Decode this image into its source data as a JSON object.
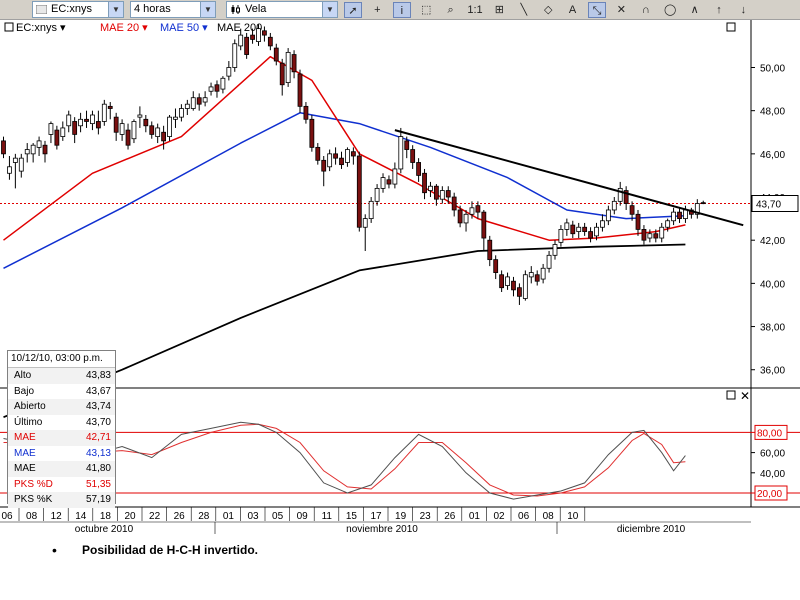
{
  "toolbar": {
    "symbol": "EC:xnys",
    "interval": "4 horas",
    "chart_style": "Vela",
    "buttons": [
      {
        "name": "pointer-tool-button",
        "glyph": "➚",
        "active": true
      },
      {
        "name": "crosshair-tool-button",
        "glyph": "+",
        "active": false
      },
      {
        "name": "info-tool-button",
        "glyph": "i",
        "active": true
      },
      {
        "name": "zoom-area-tool-button",
        "glyph": "⬚",
        "active": false
      },
      {
        "name": "zoom-tool-button",
        "glyph": "⌕",
        "active": false
      },
      {
        "name": "scale-1-1-button",
        "glyph": "1:1",
        "active": false
      },
      {
        "name": "fibonacci-tool-button",
        "glyph": "⊞",
        "active": false
      },
      {
        "name": "line-tool-button",
        "glyph": "╲",
        "active": false
      },
      {
        "name": "eraser-tool-button",
        "glyph": "◇",
        "active": false
      },
      {
        "name": "text-tool-button",
        "glyph": "A",
        "active": false
      },
      {
        "name": "channel-tool-button",
        "glyph": "⤡",
        "active": true
      },
      {
        "name": "delete-tool-button",
        "glyph": "✕",
        "active": false
      },
      {
        "name": "cycle-tool-button",
        "glyph": "∩",
        "active": false
      },
      {
        "name": "ellipse-tool-button",
        "glyph": "◯",
        "active": false
      },
      {
        "name": "wave-tool-button",
        "glyph": "∧",
        "active": false
      },
      {
        "name": "arrow-up-tool-button",
        "glyph": "↑",
        "active": false
      },
      {
        "name": "arrow-down-tool-button",
        "glyph": "↓",
        "active": false
      }
    ]
  },
  "legend": {
    "symbol": "EC:xnys",
    "mae20": "MAE 20",
    "mae50": "MAE 50",
    "mae200": "MAE 200",
    "arrow": "▾"
  },
  "colors": {
    "price": "#000000",
    "mae20": "#e00000",
    "mae50": "#1030d0",
    "mae200": "#000000",
    "candle_down": "#7a1010",
    "candle_up": "#ffffff",
    "ref_line": "#e00000",
    "osc_k": "#505050",
    "osc_d": "#e03030"
  },
  "panel_controls": {
    "restore": "☐",
    "close": "✕"
  },
  "infobox": {
    "title": "10/12/10, 03:00 p.m.",
    "rows": [
      {
        "label": "Alto",
        "value": "43,83",
        "color": "#000000"
      },
      {
        "label": "Bajo",
        "value": "43,67",
        "color": "#000000"
      },
      {
        "label": "Abierto",
        "value": "43,74",
        "color": "#000000"
      },
      {
        "label": "Último",
        "value": "43,70",
        "color": "#000000"
      },
      {
        "label": "MAE",
        "value": "42,71",
        "color": "#e00000"
      },
      {
        "label": "MAE",
        "value": "43,13",
        "color": "#1030d0"
      },
      {
        "label": "MAE",
        "value": "41,80",
        "color": "#000000"
      },
      {
        "label": "PKS %D",
        "value": "51,35",
        "color": "#e00000"
      },
      {
        "label": "PKS %K",
        "value": "57,19",
        "color": "#000000"
      }
    ]
  },
  "bullet": {
    "dot": "•",
    "text": "Posibilidad de H-C-H invertido."
  },
  "chart_data": {
    "type": "candlestick",
    "y_ticks": [
      {
        "value": 36,
        "label": "36,00"
      },
      {
        "value": 38,
        "label": "38,00"
      },
      {
        "value": 40,
        "label": "40,00"
      },
      {
        "value": 42,
        "label": "42,00"
      },
      {
        "value": 44,
        "label": "44,00"
      },
      {
        "value": 46,
        "label": "46,00"
      },
      {
        "value": 48,
        "label": "48,00"
      },
      {
        "value": 50,
        "label": "50,00"
      }
    ],
    "ylim": [
      35.2,
      52.2
    ],
    "last_price": {
      "value": 43.7,
      "label": "43,70"
    },
    "day_labels": [
      "06",
      "08",
      "12",
      "14",
      "18",
      "20",
      "22",
      "26",
      "28",
      "01",
      "03",
      "05",
      "09",
      "11",
      "15",
      "17",
      "19",
      "23",
      "26",
      "01",
      "02",
      "06",
      "08",
      "10"
    ],
    "month_labels": [
      "octubre 2010",
      "noviembre 2010",
      "diciembre 2010"
    ],
    "grid": false,
    "candles": [
      [
        46.6,
        46.0,
        45.8,
        46.8
      ],
      [
        45.1,
        45.4,
        44.8,
        45.9
      ],
      [
        45.6,
        45.8,
        44.4,
        46.0
      ],
      [
        45.2,
        45.8,
        44.9,
        46.0
      ],
      [
        46.0,
        46.2,
        45.6,
        46.5
      ],
      [
        46.0,
        46.4,
        45.6,
        46.5
      ],
      [
        46.3,
        46.6,
        45.9,
        46.8
      ],
      [
        46.4,
        46.0,
        45.6,
        46.6
      ],
      [
        46.9,
        47.4,
        46.5,
        47.5
      ],
      [
        47.1,
        46.4,
        46.2,
        47.3
      ],
      [
        46.8,
        47.2,
        46.6,
        47.5
      ],
      [
        47.3,
        47.8,
        47.0,
        48.0
      ],
      [
        47.5,
        46.9,
        46.5,
        47.7
      ],
      [
        47.3,
        47.6,
        47.0,
        47.9
      ],
      [
        47.6,
        47.5,
        47.2,
        48.0
      ],
      [
        47.4,
        47.8,
        47.1,
        48.0
      ],
      [
        47.5,
        47.2,
        46.9,
        48.0
      ],
      [
        47.5,
        48.3,
        47.3,
        48.5
      ],
      [
        48.2,
        48.1,
        47.6,
        48.4
      ],
      [
        47.7,
        47.0,
        46.6,
        47.9
      ],
      [
        46.9,
        47.4,
        46.6,
        47.6
      ],
      [
        47.1,
        46.4,
        46.2,
        47.4
      ],
      [
        46.7,
        47.5,
        46.5,
        47.6
      ],
      [
        47.7,
        47.8,
        47.2,
        48.2
      ],
      [
        47.6,
        47.3,
        47.0,
        47.8
      ],
      [
        47.3,
        46.9,
        46.7,
        47.5
      ],
      [
        46.8,
        47.2,
        46.5,
        47.4
      ],
      [
        47.0,
        46.6,
        46.2,
        47.3
      ],
      [
        46.8,
        47.7,
        46.6,
        47.8
      ],
      [
        47.6,
        47.7,
        47.2,
        48.1
      ],
      [
        47.7,
        48.1,
        47.5,
        48.3
      ],
      [
        48.1,
        48.3,
        47.8,
        48.5
      ],
      [
        48.1,
        48.6,
        48.0,
        48.9
      ],
      [
        48.6,
        48.3,
        48.0,
        48.8
      ],
      [
        48.4,
        48.6,
        48.2,
        48.9
      ],
      [
        48.9,
        49.1,
        48.7,
        49.3
      ],
      [
        49.2,
        48.9,
        48.6,
        49.4
      ],
      [
        49.0,
        49.5,
        48.8,
        49.6
      ],
      [
        49.6,
        50.0,
        49.4,
        50.3
      ],
      [
        50.0,
        51.1,
        49.8,
        51.3
      ],
      [
        51.0,
        51.5,
        50.8,
        51.8
      ],
      [
        51.4,
        50.6,
        50.4,
        51.6
      ],
      [
        51.5,
        51.3,
        51.1,
        51.8
      ],
      [
        51.2,
        51.8,
        51.0,
        52.0
      ],
      [
        51.7,
        51.5,
        51.2,
        51.9
      ],
      [
        51.4,
        51.0,
        50.8,
        51.6
      ],
      [
        50.9,
        50.3,
        50.1,
        51.1
      ],
      [
        50.2,
        49.2,
        48.7,
        50.4
      ],
      [
        49.3,
        50.7,
        49.1,
        50.9
      ],
      [
        50.6,
        49.8,
        49.5,
        50.8
      ],
      [
        49.7,
        48.2,
        47.9,
        49.9
      ],
      [
        48.2,
        47.6,
        47.4,
        48.4
      ],
      [
        47.6,
        46.3,
        46.1,
        47.8
      ],
      [
        46.3,
        45.7,
        45.5,
        46.5
      ],
      [
        45.7,
        45.2,
        44.5,
        45.9
      ],
      [
        45.4,
        46.0,
        45.2,
        46.2
      ],
      [
        46.0,
        45.8,
        45.5,
        46.3
      ],
      [
        45.8,
        45.5,
        45.3,
        46.1
      ],
      [
        45.6,
        46.2,
        45.4,
        46.3
      ],
      [
        46.1,
        45.9,
        45.5,
        46.3
      ],
      [
        45.9,
        42.6,
        42.4,
        46.1
      ],
      [
        42.6,
        43.0,
        41.5,
        43.2
      ],
      [
        43.0,
        43.8,
        42.8,
        44.0
      ],
      [
        43.8,
        44.4,
        43.6,
        44.6
      ],
      [
        44.4,
        44.9,
        44.2,
        45.1
      ],
      [
        44.8,
        44.6,
        44.4,
        45.0
      ],
      [
        44.6,
        45.3,
        44.4,
        45.6
      ],
      [
        45.3,
        46.8,
        45.1,
        47.2
      ],
      [
        46.6,
        46.2,
        45.8,
        46.8
      ],
      [
        46.2,
        45.6,
        45.3,
        46.4
      ],
      [
        45.6,
        45.0,
        44.7,
        45.8
      ],
      [
        45.1,
        44.2,
        43.9,
        45.3
      ],
      [
        44.3,
        44.5,
        44.0,
        44.7
      ],
      [
        44.5,
        43.9,
        43.6,
        44.6
      ],
      [
        43.9,
        44.3,
        43.7,
        44.5
      ],
      [
        44.3,
        44.0,
        43.7,
        44.5
      ],
      [
        44.0,
        43.4,
        43.1,
        44.2
      ],
      [
        43.4,
        42.8,
        42.6,
        43.6
      ],
      [
        42.8,
        43.2,
        42.4,
        43.4
      ],
      [
        43.2,
        43.5,
        43.0,
        43.8
      ],
      [
        43.6,
        43.3,
        43.0,
        43.8
      ],
      [
        43.3,
        42.1,
        41.5,
        43.4
      ],
      [
        42.0,
        41.1,
        40.8,
        42.2
      ],
      [
        41.1,
        40.5,
        40.2,
        41.3
      ],
      [
        40.4,
        39.8,
        39.6,
        40.6
      ],
      [
        39.9,
        40.3,
        39.7,
        40.5
      ],
      [
        40.1,
        39.7,
        39.4,
        40.3
      ],
      [
        39.8,
        39.4,
        39.0,
        40.0
      ],
      [
        39.3,
        40.4,
        39.2,
        40.6
      ],
      [
        40.3,
        40.5,
        40.0,
        40.8
      ],
      [
        40.4,
        40.1,
        39.9,
        40.6
      ],
      [
        40.2,
        40.7,
        40.0,
        40.9
      ],
      [
        40.7,
        41.3,
        40.5,
        41.5
      ],
      [
        41.3,
        41.8,
        41.1,
        42.0
      ],
      [
        41.9,
        42.5,
        41.7,
        42.7
      ],
      [
        42.5,
        42.8,
        42.2,
        43.0
      ],
      [
        42.7,
        42.3,
        42.1,
        42.9
      ],
      [
        42.4,
        42.6,
        42.1,
        42.8
      ],
      [
        42.6,
        42.4,
        42.2,
        42.8
      ],
      [
        42.4,
        42.1,
        41.9,
        42.6
      ],
      [
        42.2,
        42.6,
        42.0,
        42.8
      ],
      [
        42.6,
        42.9,
        42.4,
        43.2
      ],
      [
        42.9,
        43.4,
        42.7,
        43.6
      ],
      [
        43.4,
        43.8,
        43.2,
        44.0
      ],
      [
        43.8,
        44.4,
        43.6,
        44.7
      ],
      [
        44.3,
        43.7,
        43.4,
        44.5
      ],
      [
        43.6,
        43.2,
        42.9,
        43.8
      ],
      [
        43.2,
        42.5,
        42.2,
        43.4
      ],
      [
        42.5,
        42.0,
        41.8,
        42.7
      ],
      [
        42.1,
        42.3,
        41.9,
        42.5
      ],
      [
        42.3,
        42.1,
        41.9,
        42.5
      ],
      [
        42.1,
        42.6,
        41.9,
        42.8
      ],
      [
        42.6,
        42.9,
        42.4,
        43.0
      ],
      [
        42.9,
        43.3,
        42.7,
        43.5
      ],
      [
        43.3,
        43.0,
        42.8,
        43.5
      ],
      [
        43.0,
        43.4,
        42.8,
        43.6
      ],
      [
        43.4,
        43.2,
        43.0,
        43.5
      ],
      [
        43.2,
        43.7,
        43.0,
        43.9
      ],
      [
        43.74,
        43.7,
        43.67,
        43.83
      ]
    ],
    "mae20": [
      [
        0,
        42.0
      ],
      [
        15,
        45.1
      ],
      [
        30,
        46.8
      ],
      [
        45,
        50.5
      ],
      [
        52,
        49.4
      ],
      [
        60,
        46.0
      ],
      [
        70,
        44.6
      ],
      [
        80,
        43.0
      ],
      [
        92,
        42.0
      ],
      [
        100,
        42.1
      ],
      [
        110,
        42.4
      ],
      [
        115,
        42.71
      ]
    ],
    "mae50": [
      [
        0,
        40.7
      ],
      [
        20,
        43.5
      ],
      [
        40,
        46.5
      ],
      [
        50,
        47.9
      ],
      [
        60,
        47.4
      ],
      [
        72,
        46.3
      ],
      [
        85,
        44.9
      ],
      [
        95,
        43.4
      ],
      [
        105,
        43.0
      ],
      [
        115,
        43.13
      ]
    ],
    "mae200": [
      [
        0,
        33.8
      ],
      [
        20,
        36.0
      ],
      [
        40,
        38.4
      ],
      [
        60,
        40.6
      ],
      [
        80,
        41.5
      ],
      [
        100,
        41.7
      ],
      [
        115,
        41.8
      ]
    ],
    "trendline": [
      [
        66,
        47.1
      ],
      [
        118,
        43.2
      ]
    ],
    "oscillator": {
      "ylim": [
        0,
        100
      ],
      "y_ticks": [
        {
          "value": 40,
          "label": "40,00"
        },
        {
          "value": 60,
          "label": "60,00"
        }
      ],
      "levels": [
        {
          "value": 20,
          "label": "20,00"
        },
        {
          "value": 80,
          "label": "80,00"
        }
      ],
      "k": [
        [
          0,
          74
        ],
        [
          5,
          68
        ],
        [
          10,
          60
        ],
        [
          15,
          58
        ],
        [
          20,
          66
        ],
        [
          25,
          55
        ],
        [
          30,
          78
        ],
        [
          35,
          84
        ],
        [
          40,
          90
        ],
        [
          43,
          88
        ],
        [
          46,
          80
        ],
        [
          50,
          60
        ],
        [
          54,
          30
        ],
        [
          58,
          20
        ],
        [
          62,
          28
        ],
        [
          66,
          55
        ],
        [
          70,
          78
        ],
        [
          74,
          66
        ],
        [
          78,
          40
        ],
        [
          82,
          20
        ],
        [
          86,
          14
        ],
        [
          90,
          18
        ],
        [
          94,
          22
        ],
        [
          98,
          30
        ],
        [
          102,
          58
        ],
        [
          106,
          80
        ],
        [
          108,
          82
        ],
        [
          111,
          60
        ],
        [
          113,
          42
        ],
        [
          115,
          57
        ]
      ],
      "d": [
        [
          0,
          70
        ],
        [
          5,
          70
        ],
        [
          10,
          64
        ],
        [
          15,
          60
        ],
        [
          20,
          62
        ],
        [
          25,
          58
        ],
        [
          30,
          70
        ],
        [
          35,
          80
        ],
        [
          40,
          87
        ],
        [
          43,
          88
        ],
        [
          46,
          84
        ],
        [
          50,
          70
        ],
        [
          54,
          42
        ],
        [
          58,
          26
        ],
        [
          62,
          24
        ],
        [
          66,
          44
        ],
        [
          70,
          70
        ],
        [
          74,
          70
        ],
        [
          78,
          50
        ],
        [
          82,
          28
        ],
        [
          86,
          18
        ],
        [
          90,
          17
        ],
        [
          94,
          20
        ],
        [
          98,
          26
        ],
        [
          102,
          45
        ],
        [
          106,
          72
        ],
        [
          108,
          79
        ],
        [
          111,
          68
        ],
        [
          113,
          50
        ],
        [
          115,
          51
        ]
      ]
    }
  }
}
